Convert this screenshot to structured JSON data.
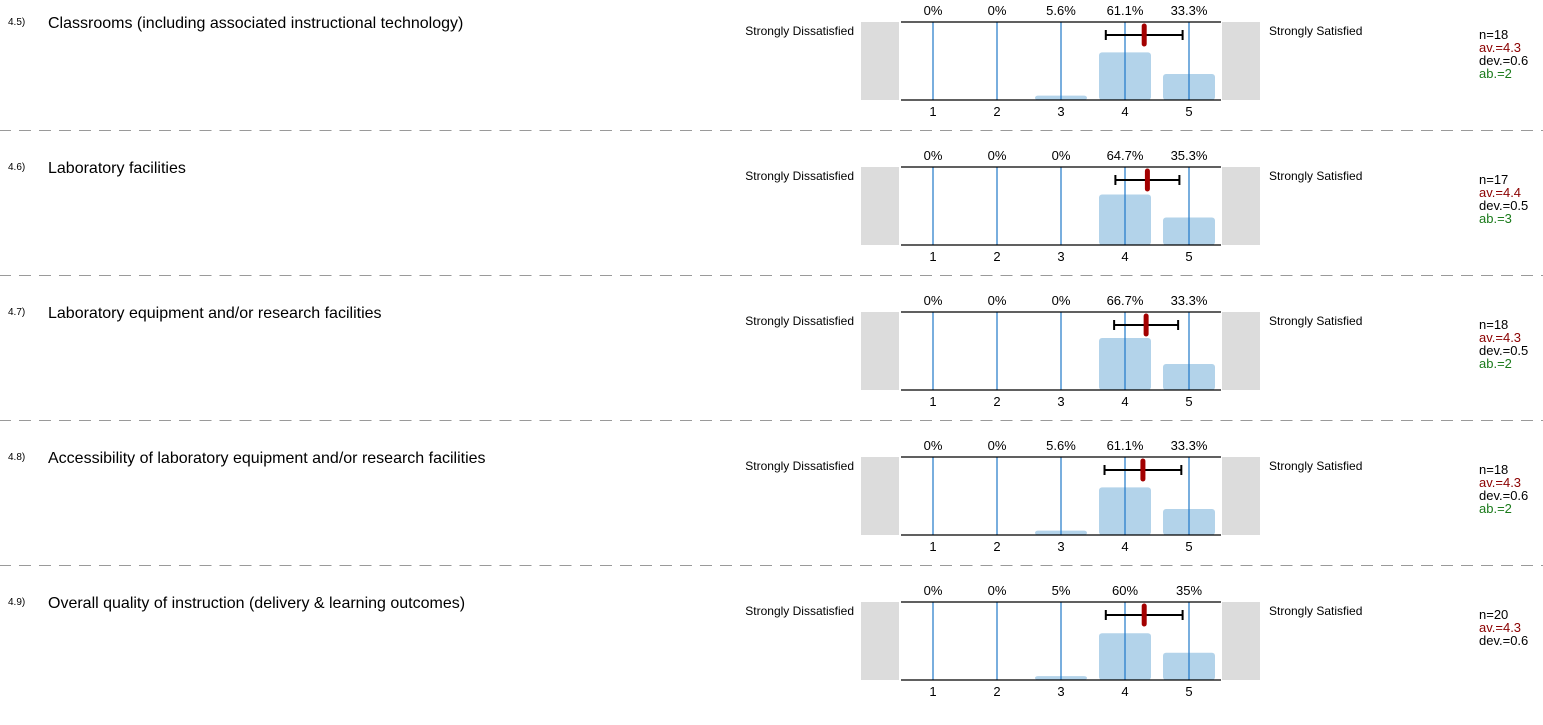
{
  "scale": {
    "left_label": "Strongly Dissatisfied",
    "right_label": "Strongly Satisfied",
    "points": [
      "1",
      "2",
      "3",
      "4",
      "5"
    ]
  },
  "colors": {
    "bar": "#b3d3ea",
    "gridline": "#1f77c8",
    "mean_marker": "#a30000",
    "n": "#000000",
    "av": "#8b0000",
    "dev": "#000000",
    "ab": "#1a7a1a"
  },
  "items": [
    {
      "number": "4.5)",
      "question": "Classrooms (including associated instructional technology)",
      "percent_labels": [
        "0%",
        "0%",
        "5.6%",
        "61.1%",
        "33.3%"
      ],
      "n": "n=18",
      "av": "av.=4.3",
      "dev": "dev.=0.6",
      "ab": "ab.=2"
    },
    {
      "number": "4.6)",
      "question": "Laboratory facilities",
      "percent_labels": [
        "0%",
        "0%",
        "0%",
        "64.7%",
        "35.3%"
      ],
      "n": "n=17",
      "av": "av.=4.4",
      "dev": "dev.=0.5",
      "ab": "ab.=3"
    },
    {
      "number": "4.7)",
      "question": "Laboratory equipment and/or research facilities",
      "percent_labels": [
        "0%",
        "0%",
        "0%",
        "66.7%",
        "33.3%"
      ],
      "n": "n=18",
      "av": "av.=4.3",
      "dev": "dev.=0.5",
      "ab": "ab.=2"
    },
    {
      "number": "4.8)",
      "question": "Accessibility of laboratory equipment and/or research facilities",
      "percent_labels": [
        "0%",
        "0%",
        "5.6%",
        "61.1%",
        "33.3%"
      ],
      "n": "n=18",
      "av": "av.=4.3",
      "dev": "dev.=0.6",
      "ab": "ab.=2"
    },
    {
      "number": "4.9)",
      "question": "Overall quality of instruction (delivery & learning outcomes)",
      "percent_labels": [
        "0%",
        "0%",
        "5%",
        "60%",
        "35%"
      ],
      "n": "n=20",
      "av": "av.=4.3",
      "dev": "dev.=0.6",
      "ab": ""
    }
  ],
  "chart_data": [
    {
      "type": "bar",
      "categories": [
        "1",
        "2",
        "3",
        "4",
        "5"
      ],
      "values": [
        0,
        0,
        5.6,
        61.1,
        33.3
      ],
      "mean": 4.3,
      "sd_range": [
        3.7,
        4.9
      ]
    },
    {
      "type": "bar",
      "categories": [
        "1",
        "2",
        "3",
        "4",
        "5"
      ],
      "values": [
        0,
        0,
        0,
        64.7,
        35.3
      ],
      "mean": 4.35,
      "sd_range": [
        3.85,
        4.85
      ]
    },
    {
      "type": "bar",
      "categories": [
        "1",
        "2",
        "3",
        "4",
        "5"
      ],
      "values": [
        0,
        0,
        0,
        66.7,
        33.3
      ],
      "mean": 4.33,
      "sd_range": [
        3.83,
        4.83
      ]
    },
    {
      "type": "bar",
      "categories": [
        "1",
        "2",
        "3",
        "4",
        "5"
      ],
      "values": [
        0,
        0,
        5.6,
        61.1,
        33.3
      ],
      "mean": 4.28,
      "sd_range": [
        3.68,
        4.88
      ]
    },
    {
      "type": "bar",
      "categories": [
        "1",
        "2",
        "3",
        "4",
        "5"
      ],
      "values": [
        0,
        0,
        5,
        60,
        35
      ],
      "mean": 4.3,
      "sd_range": [
        3.7,
        4.9
      ]
    }
  ]
}
